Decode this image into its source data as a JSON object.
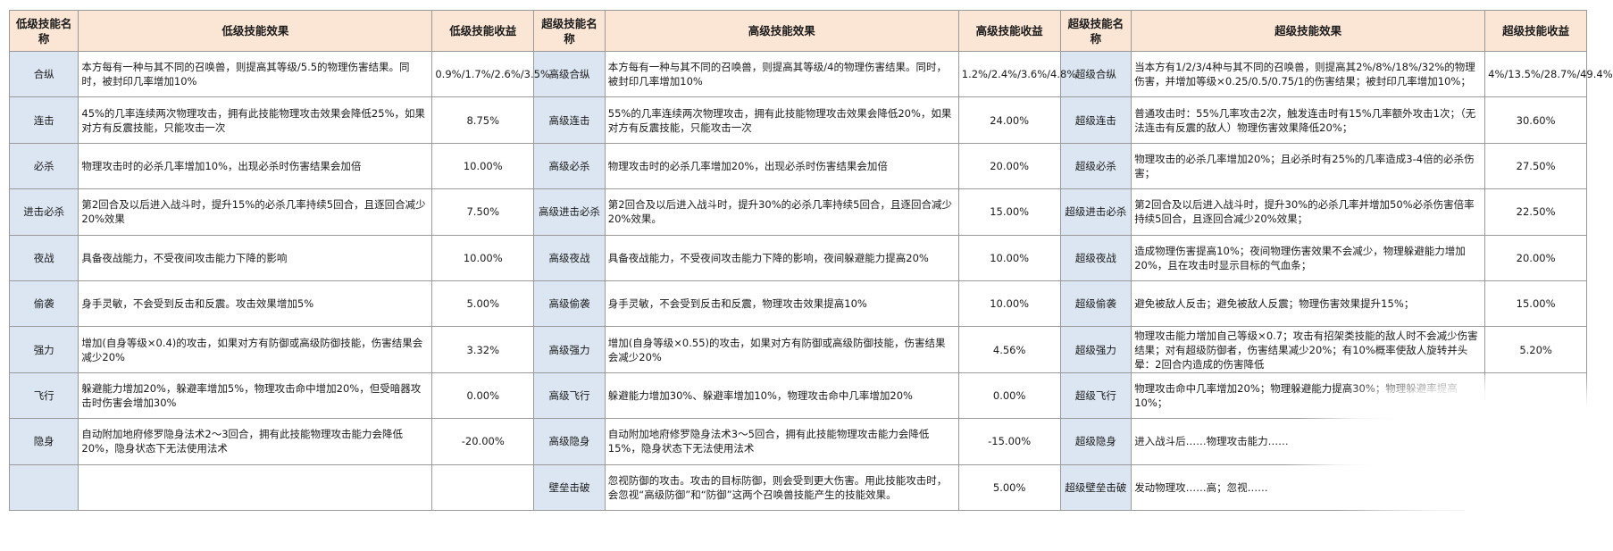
{
  "headers": {
    "low_name": "低级技能名称",
    "low_effect": "低级技能效果",
    "low_gain": "低级技能收益",
    "high_name": "超级技能名称",
    "high_effect": "高级技能效果",
    "high_gain": "高级技能收益",
    "super_name": "超级技能名称",
    "super_effect": "超级技能效果",
    "super_gain": "超级技能收益"
  },
  "rows": [
    {
      "low_name": "合纵",
      "low_effect": "本方每有一种与其不同的召唤兽，则提高其等级/5.5的物理伤害结果。同时，被封印几率增加10%",
      "low_gain": "0.9%/1.7%/2.6%/3.5%",
      "high_name": "高级合纵",
      "high_effect": "本方每有一种与其不同的召唤兽，则提高其等级/4的物理伤害结果。同时，被封印几率增加10%",
      "high_gain": "1.2%/2.4%/3.6%/4.8%",
      "super_name": "超级合纵",
      "super_effect": "当本方有1/2/3/4种与其不同的召唤兽，则提高其2%/8%/18%/32%的物理伤害，并增加等级×0.25/0.5/0.75/1的伤害结果；被封印几率增加10%；",
      "super_gain": "4%/13.5%/28.7%/49.4%"
    },
    {
      "low_name": "连击",
      "low_effect": "45%的几率连续两次物理攻击，拥有此技能物理攻击效果会降低25%，如果对方有反震技能，只能攻击一次",
      "low_gain": "8.75%",
      "high_name": "高级连击",
      "high_effect": "55%的几率连续两次物理攻击，拥有此技能物理攻击效果会降低20%，如果对方有反震技能，只能攻击一次",
      "high_gain": "24.00%",
      "super_name": "超级连击",
      "super_effect": "普通攻击时：55%几率攻击2次，触发连击时有15%几率额外攻击1次；（无法连击有反震的敌人）物理伤害效果降低20%；",
      "super_gain": "30.60%"
    },
    {
      "low_name": "必杀",
      "low_effect": "物理攻击时的必杀几率增加10%，出现必杀时伤害结果会加倍",
      "low_gain": "10.00%",
      "high_name": "高级必杀",
      "high_effect": "物理攻击时的必杀几率增加20%，出现必杀时伤害结果会加倍",
      "high_gain": "20.00%",
      "super_name": "超级必杀",
      "super_effect": "物理攻击的必杀几率增加20%；且必杀时有25%的几率造成3-4倍的必杀伤害；",
      "super_gain": "27.50%"
    },
    {
      "low_name": "进击必杀",
      "low_effect": "第2回合及以后进入战斗时，提升15%的必杀几率持续5回合，且逐回合减少20%效果",
      "low_gain": "7.50%",
      "high_name": "高级进击必杀",
      "high_effect": "第2回合及以后进入战斗时，提升30%的必杀几率持续5回合，且逐回合减少20%效果。",
      "high_gain": "15.00%",
      "super_name": "超级进击必杀",
      "super_effect": "第2回合及以后进入战斗时，提升30%的必杀几率并增加50%必杀伤害倍率持续5回合，且逐回合减少20%效果；",
      "super_gain": "22.50%"
    },
    {
      "low_name": "夜战",
      "low_effect": "具备夜战能力，不受夜间攻击能力下降的影响",
      "low_gain": "10.00%",
      "high_name": "高级夜战",
      "high_effect": "具备夜战能力，不受夜间攻击能力下降的影响，夜间躲避能力提高20%",
      "high_gain": "10.00%",
      "super_name": "超级夜战",
      "super_effect": "造成物理伤害提高10%；夜间物理伤害效果不会减少，物理躲避能力增加20%，且在攻击时显示目标的气血条；",
      "super_gain": "20.00%"
    },
    {
      "low_name": "偷袭",
      "low_effect": "身手灵敏，不会受到反击和反震。攻击效果增加5%",
      "low_gain": "5.00%",
      "high_name": "高级偷袭",
      "high_effect": "身手灵敏，不会受到反击和反震，物理攻击效果提高10%",
      "high_gain": "10.00%",
      "super_name": "超级偷袭",
      "super_effect": "避免被敌人反击；避免被敌人反震；物理伤害效果提升15%；",
      "super_gain": "15.00%"
    },
    {
      "low_name": "强力",
      "low_effect": "增加(自身等级×0.4)的攻击，如果对方有防御或高级防御技能，伤害结果会减少20%",
      "low_gain": "3.32%",
      "high_name": "高级强力",
      "high_effect": "增加(自身等级×0.55)的攻击，如果对方有防御或高级防御技能，伤害结果会减少20%",
      "high_gain": "4.56%",
      "super_name": "超级强力",
      "super_effect": "物理攻击能力增加自己等级×0.7；攻击有招架类技能的敌人时不会减少伤害结果；对有超级防御者，伤害结果减少20%；有10%概率使敌人旋转并头晕：2回合内造成的伤害降低",
      "super_gain": "5.20%"
    },
    {
      "low_name": "飞行",
      "low_effect": "躲避能力增加20%，躲避率增加5%，物理攻击命中增加20%，但受暗器攻击时伤害会增加30%",
      "low_gain": "0.00%",
      "high_name": "高级飞行",
      "high_effect": "躲避能力增加30%、躲避率增加10%，物理攻击命中几率增加20%",
      "high_gain": "0.00%",
      "super_name": "超级飞行",
      "super_effect": "物理攻击命中几率增加20%；物理躲避能力提高30%；物理躲避率提高10%；",
      "super_gain": ""
    },
    {
      "low_name": "隐身",
      "low_effect": "自动附加地府修罗隐身法术2～3回合，拥有此技能物理攻击能力会降低20%，隐身状态下无法使用法术",
      "low_gain": "-20.00%",
      "high_name": "高级隐身",
      "high_effect": "自动附加地府修罗隐身法术3～5回合，拥有此技能物理攻击能力会降低15%，隐身状态下无法使用法术",
      "high_gain": "-15.00%",
      "super_name": "超级隐身",
      "super_effect": "进入战斗后……物理攻击能力……",
      "super_gain": ""
    },
    {
      "low_name": "",
      "low_effect": "",
      "low_gain": "",
      "high_name": "壁垒击破",
      "high_effect": "忽视防御的攻击。攻击的目标防御，则会受到更大伤害。用此技能攻击时，会忽视“高级防御”和“防御”这两个召唤兽技能产生的技能效果。",
      "high_gain": "5.00%",
      "super_name": "超级壁垒击破",
      "super_effect": "发动物理攻……高；忽视……",
      "super_gain": ""
    }
  ]
}
